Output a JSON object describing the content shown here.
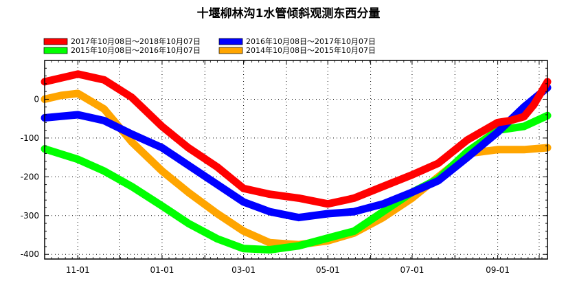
{
  "chart_data": {
    "type": "line",
    "title": "十堰柳林沟1水管倾斜观测东西分量",
    "xlabel": "",
    "ylabel": "",
    "x_ticks": [
      "11-01",
      "01-01",
      "03-01",
      "05-01",
      "07-01",
      "09-01"
    ],
    "x_range": [
      "10-08",
      "10-07"
    ],
    "y_ticks": [
      0,
      -100,
      -200,
      -300,
      -400
    ],
    "ylim": [
      -412,
      100
    ],
    "grid": "dotted",
    "legend_position": "top",
    "x_unit": "month-of-year (Oct 8 to Oct 7)",
    "series": [
      {
        "name": "2017年10月08日～2018年10月07日",
        "color": "#ff0000",
        "x": [
          "10-08",
          "11-01",
          "11-20",
          "12-10",
          "01-01",
          "01-20",
          "02-10",
          "03-01",
          "03-20",
          "04-10",
          "05-01",
          "05-20",
          "06-10",
          "07-01",
          "07-20",
          "08-10",
          "09-01",
          "09-10",
          "09-20",
          "09-27",
          "10-07"
        ],
        "values": [
          45,
          65,
          50,
          5,
          -70,
          -125,
          -175,
          -230,
          -245,
          -255,
          -270,
          -255,
          -225,
          -195,
          -165,
          -105,
          -60,
          -55,
          -45,
          -15,
          45
        ]
      },
      {
        "name": "2016年10月08日～2017年10月07日",
        "color": "#0000ff",
        "x": [
          "10-08",
          "11-01",
          "11-20",
          "12-10",
          "01-01",
          "01-20",
          "02-10",
          "03-01",
          "03-20",
          "04-10",
          "05-01",
          "05-20",
          "06-10",
          "07-01",
          "07-20",
          "08-10",
          "09-01",
          "09-20",
          "10-07"
        ],
        "values": [
          -48,
          -40,
          -55,
          -90,
          -125,
          -170,
          -220,
          -265,
          -290,
          -305,
          -295,
          -290,
          -270,
          -240,
          -210,
          -150,
          -85,
          -20,
          30
        ]
      },
      {
        "name": "2015年10月08日～2016年10月07日",
        "color": "#00ff00",
        "x": [
          "10-08",
          "11-01",
          "11-20",
          "12-10",
          "01-01",
          "01-20",
          "02-10",
          "03-01",
          "03-20",
          "04-10",
          "05-01",
          "05-20",
          "06-10",
          "07-01",
          "07-20",
          "08-10",
          "09-01",
          "09-20",
          "10-07"
        ],
        "values": [
          -128,
          -155,
          -185,
          -225,
          -275,
          -320,
          -360,
          -385,
          -388,
          -378,
          -358,
          -340,
          -290,
          -240,
          -205,
          -135,
          -80,
          -70,
          -42
        ]
      },
      {
        "name": "2014年10月08日～2015年10月07日",
        "color": "#ffa500",
        "x": [
          "10-08",
          "10-20",
          "11-01",
          "11-20",
          "12-10",
          "01-01",
          "01-20",
          "02-10",
          "03-01",
          "03-20",
          "04-10",
          "05-01",
          "05-20",
          "06-10",
          "07-01",
          "07-20",
          "08-10",
          "09-01",
          "09-20",
          "10-07"
        ],
        "values": [
          0,
          10,
          15,
          -25,
          -110,
          -185,
          -240,
          -295,
          -340,
          -370,
          -375,
          -365,
          -345,
          -305,
          -255,
          -200,
          -140,
          -130,
          -130,
          -125
        ]
      }
    ]
  }
}
